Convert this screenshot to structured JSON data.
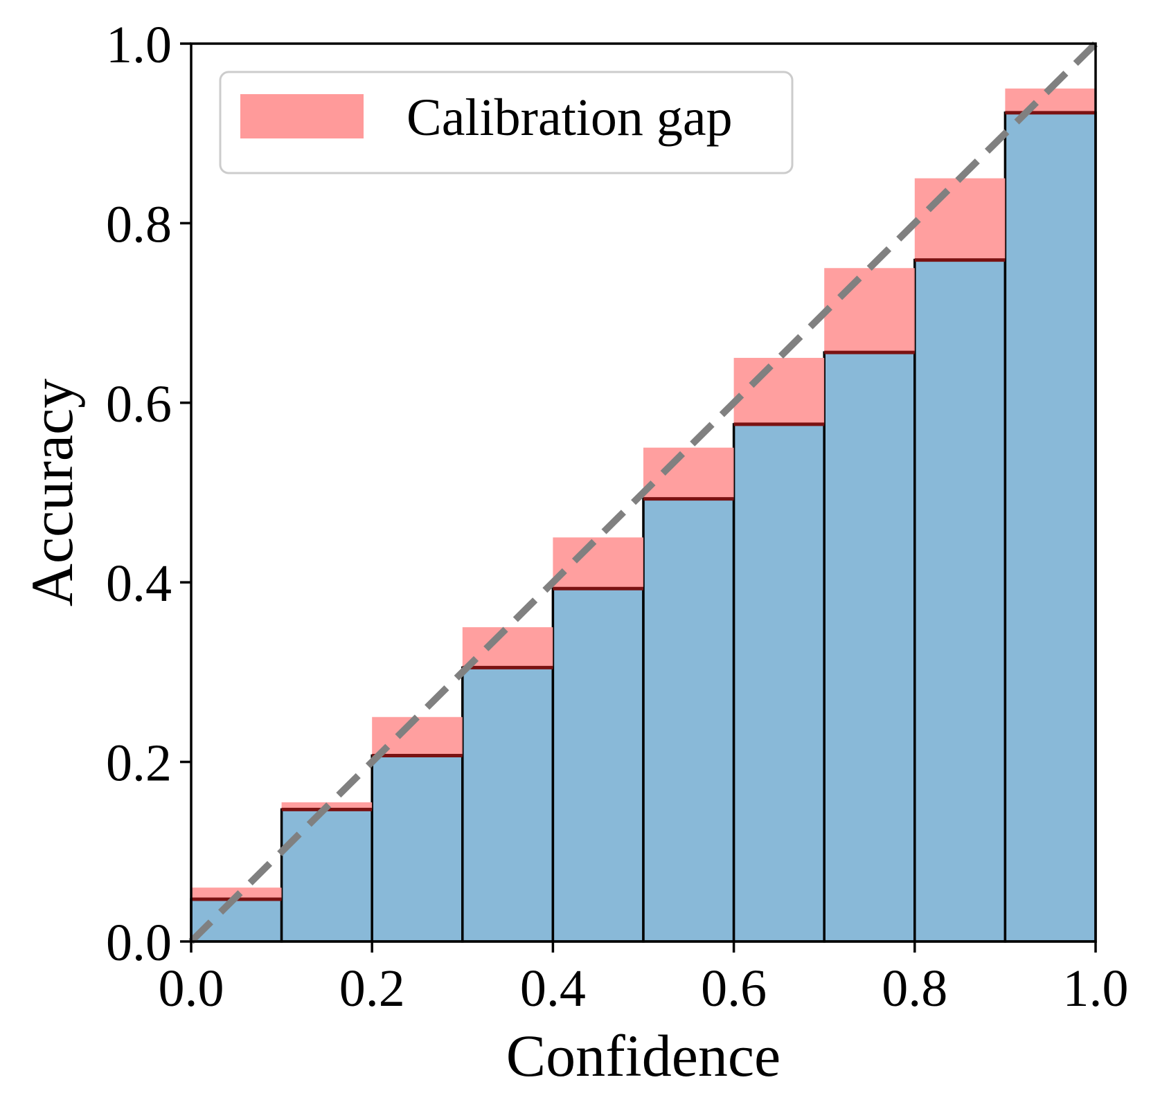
{
  "chart_data": {
    "type": "bar",
    "title": "",
    "xlabel": "Confidence",
    "ylabel": "Accuracy",
    "xlim": [
      0.0,
      1.0
    ],
    "ylim": [
      0.0,
      1.0
    ],
    "x_ticks": [
      "0.0",
      "0.2",
      "0.4",
      "0.6",
      "0.8",
      "1.0"
    ],
    "y_ticks": [
      "0.0",
      "0.2",
      "0.4",
      "0.6",
      "0.8",
      "1.0"
    ],
    "bin_width": 0.1,
    "bins": [
      {
        "x0": 0.0,
        "x1": 0.1,
        "accuracy": 0.047,
        "confidence": 0.06
      },
      {
        "x0": 0.1,
        "x1": 0.2,
        "accuracy": 0.147,
        "confidence": 0.155
      },
      {
        "x0": 0.2,
        "x1": 0.3,
        "accuracy": 0.207,
        "confidence": 0.25
      },
      {
        "x0": 0.3,
        "x1": 0.4,
        "accuracy": 0.305,
        "confidence": 0.35
      },
      {
        "x0": 0.4,
        "x1": 0.5,
        "accuracy": 0.393,
        "confidence": 0.45
      },
      {
        "x0": 0.5,
        "x1": 0.6,
        "accuracy": 0.493,
        "confidence": 0.55
      },
      {
        "x0": 0.6,
        "x1": 0.7,
        "accuracy": 0.576,
        "confidence": 0.65
      },
      {
        "x0": 0.7,
        "x1": 0.8,
        "accuracy": 0.656,
        "confidence": 0.75
      },
      {
        "x0": 0.8,
        "x1": 0.9,
        "accuracy": 0.759,
        "confidence": 0.85
      },
      {
        "x0": 0.9,
        "x1": 1.0,
        "accuracy": 0.923,
        "confidence": 0.95
      }
    ],
    "diagonal": {
      "style": "dashed",
      "from": [
        0,
        0
      ],
      "to": [
        1,
        1
      ]
    },
    "legend": {
      "position": "top-left",
      "entries": [
        "Calibration gap"
      ]
    },
    "grid": false,
    "colors": {
      "accuracy_bar": "#89b9d8",
      "gap": "#ff9a9a",
      "gap_edge": "#7a1212",
      "diagonal": "#808080"
    }
  }
}
